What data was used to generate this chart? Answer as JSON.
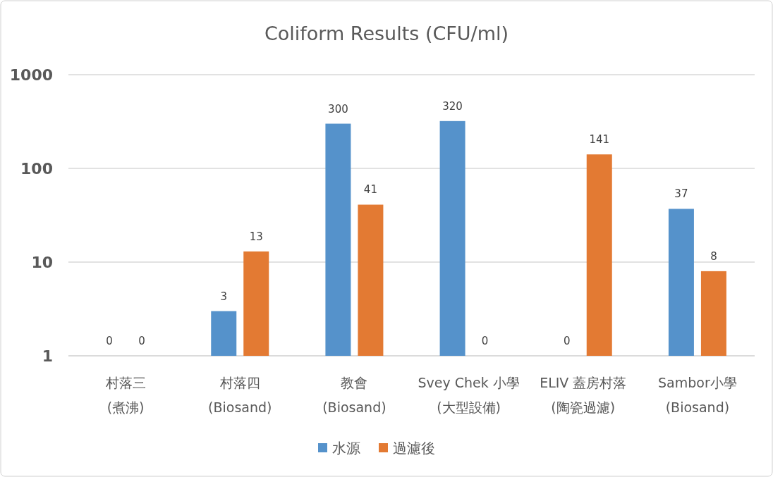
{
  "chart_data": {
    "type": "bar",
    "title": "Coliform Results (CFU/ml)",
    "categories": [
      "村落三\n(煮沸)",
      "村落四\n(Biosand)",
      "教會\n(Biosand)",
      "Svey Chek 小學\n(大型設備)",
      "ELIV 蓋房村落\n(陶瓷過濾)",
      "Sambor小學\n(Biosand)"
    ],
    "series": [
      {
        "name": "水源",
        "color": "#5592cb",
        "values": [
          null,
          3,
          300,
          320,
          null,
          37
        ],
        "value_labels": [
          "0",
          "3",
          "300",
          "320",
          "0",
          "37"
        ]
      },
      {
        "name": "過濾後",
        "color": "#e37a33",
        "values": [
          null,
          13,
          41,
          null,
          141,
          8
        ],
        "value_labels": [
          "0",
          "13",
          "41",
          "0",
          "141",
          "8"
        ]
      }
    ],
    "log": true,
    "ylim": [
      1,
      1000
    ],
    "yticks": [
      1,
      10,
      100,
      1000
    ],
    "grid": "y",
    "legend": "bottom"
  }
}
